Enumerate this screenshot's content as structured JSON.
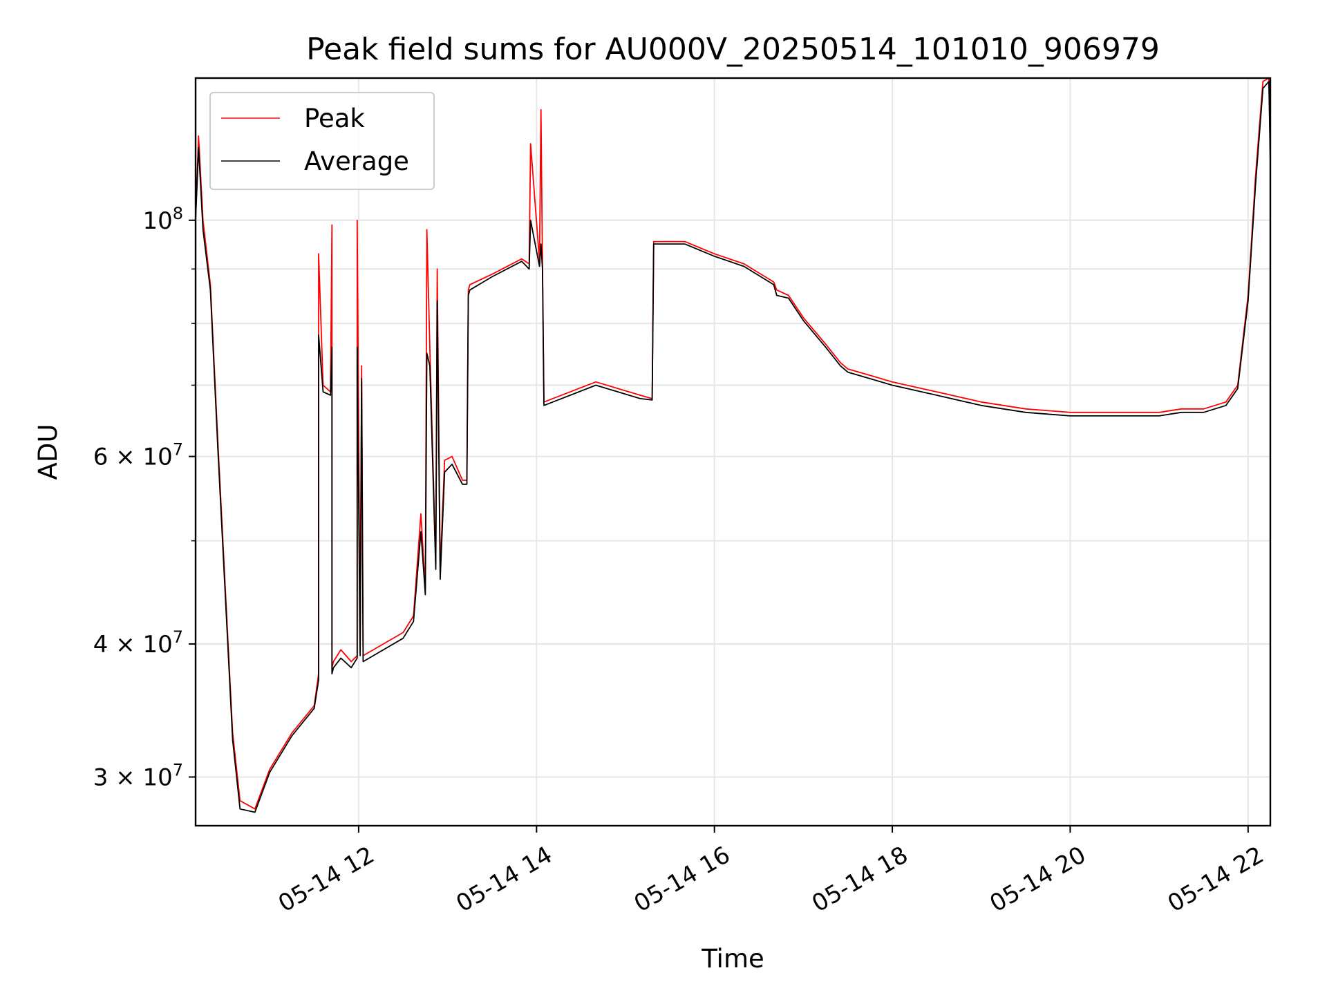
{
  "chart_data": {
    "type": "line",
    "title": "Peak field sums for AU000V_20250514_101010_906979",
    "xlabel": "Time",
    "ylabel": "ADU",
    "yscale": "log",
    "xlim": [
      "05-14 10:10",
      "05-14 22:15"
    ],
    "ylim": [
      27000000,
      136000000
    ],
    "grid": true,
    "legend": {
      "placement": "top-left",
      "entries": [
        "Peak",
        "Average"
      ]
    },
    "x_ticks": [
      "05-14 12",
      "05-14 14",
      "05-14 16",
      "05-14 18",
      "05-14 20",
      "05-14 22"
    ],
    "y_ticks": [
      {
        "value": 30000000,
        "label": "3 × 10⁷",
        "mant": "3",
        "exp": "7"
      },
      {
        "value": 40000000,
        "label": "4 × 10⁷",
        "mant": "4",
        "exp": "7"
      },
      {
        "value": 60000000,
        "label": "6 × 10⁷",
        "mant": "6",
        "exp": "7"
      },
      {
        "value": 100000000,
        "label": "10⁸",
        "mant": "",
        "exp": "8"
      }
    ],
    "colors": {
      "Peak": "#ff0000",
      "Average": "#000000",
      "grid": "#e6e6e6"
    },
    "series": [
      {
        "name": "Peak",
        "x": [
          "05-14 10:10",
          "05-14 10:12",
          "05-14 10:15",
          "05-14 10:20",
          "05-14 10:25",
          "05-14 10:35",
          "05-14 10:40",
          "05-14 10:50",
          "05-14 11:00",
          "05-14 11:15",
          "05-14 11:30",
          "05-14 11:33",
          "05-14 11:33",
          "05-14 11:36",
          "05-14 11:41",
          "05-14 11:42",
          "05-14 11:42",
          "05-14 11:43",
          "05-14 11:48",
          "05-14 11:55",
          "05-14 11:59",
          "05-14 11:59",
          "05-14 12:01",
          "05-14 12:02",
          "05-14 12:03",
          "05-14 12:30",
          "05-14 12:37",
          "05-14 12:42",
          "05-14 12:45",
          "05-14 12:46",
          "05-14 12:48",
          "05-14 12:52",
          "05-14 12:53",
          "05-14 12:55",
          "05-14 12:58",
          "05-14 13:03",
          "05-14 13:10",
          "05-14 13:13",
          "05-14 13:14",
          "05-14 13:15",
          "05-14 13:30",
          "05-14 13:50",
          "05-14 13:55",
          "05-14 13:56",
          "05-14 14:02",
          "05-14 14:03",
          "05-14 14:04",
          "05-14 14:05",
          "05-14 14:40",
          "05-14 15:10",
          "05-14 15:18",
          "05-14 15:19",
          "05-14 15:40",
          "05-14 16:00",
          "05-14 16:20",
          "05-14 16:40",
          "05-14 16:42",
          "05-14 16:50",
          "05-14 17:00",
          "05-14 17:15",
          "05-14 17:25",
          "05-14 17:30",
          "05-14 17:45",
          "05-14 18:00",
          "05-14 18:30",
          "05-14 19:00",
          "05-14 19:30",
          "05-14 20:00",
          "05-14 20:30",
          "05-14 21:00",
          "05-14 21:15",
          "05-14 21:30",
          "05-14 21:45",
          "05-14 21:53",
          "05-14 22:00",
          "05-14 22:05",
          "05-14 22:10",
          "05-14 22:14",
          "05-14 22:15"
        ],
        "values": [
          101000000,
          120000000,
          100000000,
          87000000,
          62000000,
          33000000,
          28500000,
          28000000,
          30500000,
          33000000,
          35000000,
          37500000,
          93000000,
          70000000,
          69000000,
          99000000,
          38000000,
          38500000,
          39500000,
          38500000,
          39000000,
          100000000,
          40000000,
          73000000,
          39000000,
          41000000,
          42500000,
          53000000,
          45000000,
          98000000,
          76000000,
          47500000,
          90000000,
          47000000,
          59500000,
          60000000,
          57000000,
          57000000,
          86000000,
          87000000,
          89000000,
          92000000,
          91000000,
          118000000,
          91500000,
          127000000,
          91000000,
          67500000,
          70500000,
          68500000,
          68000000,
          95500000,
          95500000,
          93000000,
          91000000,
          87500000,
          86000000,
          85000000,
          81000000,
          76500000,
          73500000,
          72500000,
          71500000,
          70500000,
          69000000,
          67500000,
          66500000,
          66000000,
          66000000,
          66000000,
          66500000,
          66500000,
          67500000,
          70000000,
          85000000,
          110000000,
          135000000,
          136000000,
          115000000
        ]
      },
      {
        "name": "Average",
        "x": [
          "05-14 10:10",
          "05-14 10:12",
          "05-14 10:15",
          "05-14 10:20",
          "05-14 10:25",
          "05-14 10:35",
          "05-14 10:40",
          "05-14 10:50",
          "05-14 11:00",
          "05-14 11:15",
          "05-14 11:30",
          "05-14 11:33",
          "05-14 11:33",
          "05-14 11:36",
          "05-14 11:41",
          "05-14 11:42",
          "05-14 11:42",
          "05-14 11:43",
          "05-14 11:48",
          "05-14 11:55",
          "05-14 11:59",
          "05-14 11:59",
          "05-14 12:01",
          "05-14 12:02",
          "05-14 12:03",
          "05-14 12:30",
          "05-14 12:37",
          "05-14 12:42",
          "05-14 12:45",
          "05-14 12:46",
          "05-14 12:48",
          "05-14 12:52",
          "05-14 12:53",
          "05-14 12:55",
          "05-14 12:58",
          "05-14 13:03",
          "05-14 13:10",
          "05-14 13:13",
          "05-14 13:14",
          "05-14 13:15",
          "05-14 13:30",
          "05-14 13:50",
          "05-14 13:55",
          "05-14 13:56",
          "05-14 14:02",
          "05-14 14:03",
          "05-14 14:04",
          "05-14 14:05",
          "05-14 14:40",
          "05-14 15:10",
          "05-14 15:18",
          "05-14 15:19",
          "05-14 15:40",
          "05-14 16:00",
          "05-14 16:20",
          "05-14 16:40",
          "05-14 16:42",
          "05-14 16:50",
          "05-14 17:00",
          "05-14 17:15",
          "05-14 17:25",
          "05-14 17:30",
          "05-14 17:45",
          "05-14 18:00",
          "05-14 18:30",
          "05-14 19:00",
          "05-14 19:30",
          "05-14 20:00",
          "05-14 20:30",
          "05-14 21:00",
          "05-14 21:15",
          "05-14 21:30",
          "05-14 21:45",
          "05-14 21:53",
          "05-14 22:00",
          "05-14 22:05",
          "05-14 22:10",
          "05-14 22:14",
          "05-14 22:15"
        ],
        "values": [
          100000000,
          117000000,
          98000000,
          86000000,
          61000000,
          32500000,
          28000000,
          27800000,
          30300000,
          32800000,
          34800000,
          37000000,
          78000000,
          69000000,
          68500000,
          76000000,
          37500000,
          38000000,
          38800000,
          38000000,
          38800000,
          76000000,
          39000000,
          71000000,
          38500000,
          40500000,
          42000000,
          51000000,
          44500000,
          75000000,
          73000000,
          47000000,
          84000000,
          46000000,
          58000000,
          59000000,
          56500000,
          56500000,
          85000000,
          86000000,
          88500000,
          91500000,
          90000000,
          100000000,
          90500000,
          95000000,
          90000000,
          67000000,
          70000000,
          68000000,
          67800000,
          95000000,
          95000000,
          92500000,
          90500000,
          87000000,
          85000000,
          84500000,
          80500000,
          76000000,
          73000000,
          72000000,
          71000000,
          70000000,
          68500000,
          67000000,
          66000000,
          65500000,
          65500000,
          65500000,
          66000000,
          66000000,
          67000000,
          69500000,
          84000000,
          108000000,
          133000000,
          135000000,
          113000000
        ]
      }
    ]
  }
}
